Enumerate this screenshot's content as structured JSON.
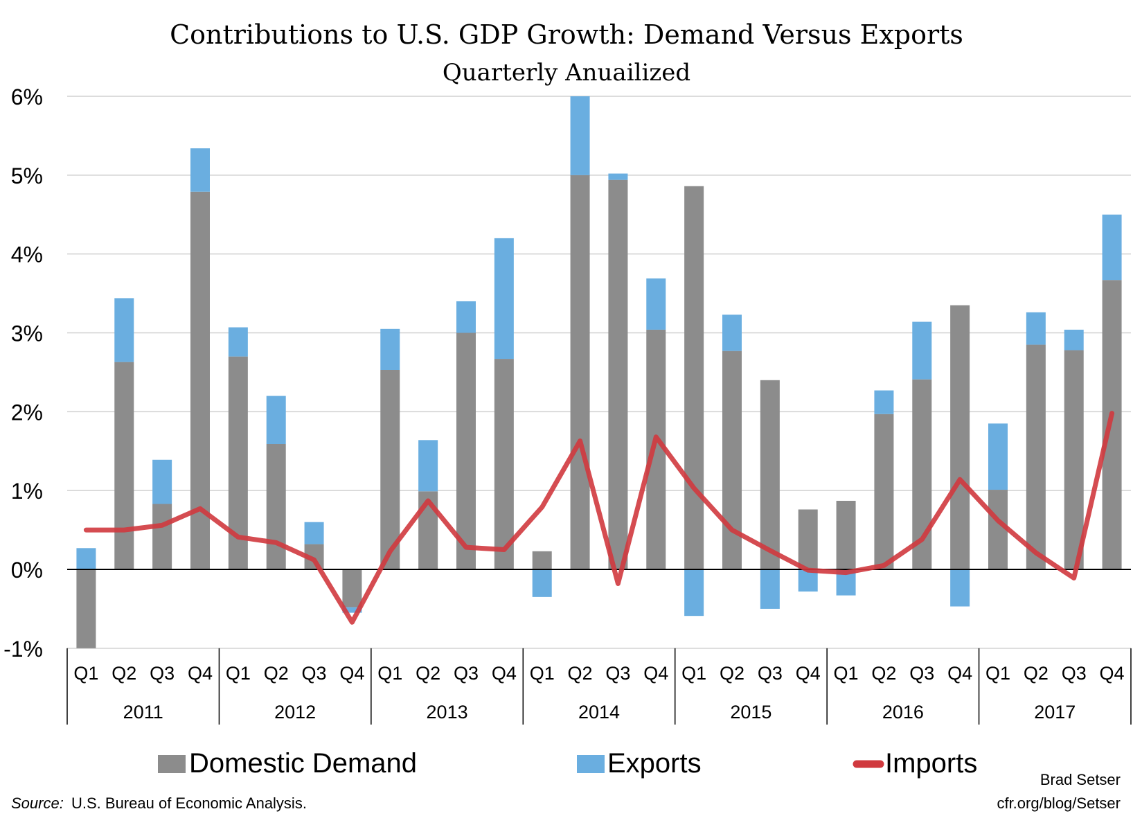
{
  "chart_data": {
    "type": "bar",
    "stacked": true,
    "title": "Contributions to U.S. GDP Growth: Demand Versus Exports",
    "subtitle": "Quarterly Anuailized",
    "ylim": [
      -1,
      6
    ],
    "yticks": [
      "-1%",
      "0%",
      "1%",
      "2%",
      "3%",
      "4%",
      "5%",
      "6%"
    ],
    "grid": true,
    "legend_position": "bottom",
    "quarters": [
      "Q1",
      "Q2",
      "Q3",
      "Q4"
    ],
    "years": [
      "2011",
      "2012",
      "2013",
      "2014",
      "2015",
      "2016",
      "2017"
    ],
    "series": [
      {
        "name": "Domestic Demand",
        "type": "bar",
        "color": "#8c8c8c",
        "values": [
          -1.0,
          2.63,
          0.83,
          4.79,
          2.7,
          1.59,
          0.32,
          -0.48,
          2.53,
          0.99,
          3.0,
          2.67,
          0.23,
          5.0,
          4.94,
          3.04,
          4.86,
          2.77,
          2.4,
          0.76,
          0.87,
          1.97,
          2.41,
          3.35,
          1.01,
          2.85,
          2.78,
          3.67
        ]
      },
      {
        "name": "Exports",
        "type": "bar",
        "color": "#6aaee0",
        "values": [
          0.27,
          0.81,
          0.56,
          0.55,
          0.37,
          0.61,
          0.28,
          -0.07,
          0.52,
          0.65,
          0.4,
          1.53,
          -0.35,
          1.0,
          0.08,
          0.65,
          -0.59,
          0.46,
          -0.5,
          -0.28,
          -0.33,
          0.3,
          0.73,
          -0.47,
          0.84,
          0.41,
          0.26,
          0.83
        ]
      },
      {
        "name": "Imports",
        "type": "line",
        "color": "#d0393e",
        "values": [
          0.5,
          0.5,
          0.56,
          0.77,
          0.41,
          0.34,
          0.12,
          -0.67,
          0.23,
          0.87,
          0.28,
          0.25,
          0.79,
          1.63,
          -0.18,
          1.68,
          1.03,
          0.5,
          0.24,
          -0.01,
          -0.04,
          0.05,
          0.38,
          1.14,
          0.62,
          0.21,
          -0.11,
          1.98
        ]
      }
    ]
  },
  "source_label": "Source:",
  "source_text": "U.S. Bureau of Economic Analysis.",
  "author": "Brad Setser",
  "author_url": "cfr.org/blog/Setser"
}
